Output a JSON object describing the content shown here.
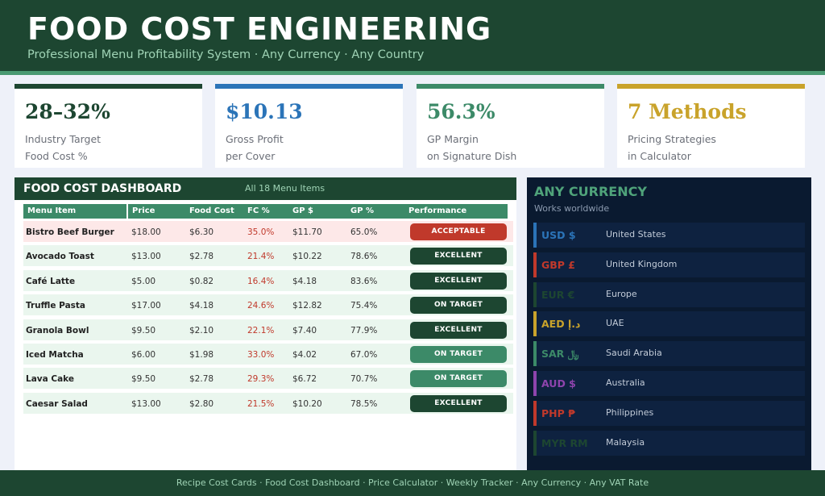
{
  "header": {
    "title": "FOOD COST ENGINEERING",
    "subtitle": "Professional Menu Profitability System  ·  Any Currency  ·  Any Country"
  },
  "cards": [
    {
      "value": "28–32%",
      "line1": "Industry Target",
      "line2": "Food Cost %",
      "color": "#1d4631"
    },
    {
      "value": "$10.13",
      "line1": "Gross Profit",
      "line2": "per Cover",
      "color": "#2b74b8"
    },
    {
      "value": "56.3%",
      "line1": "GP Margin",
      "line2": "on Signature Dish",
      "color": "#3c8a68"
    },
    {
      "value": "7 Methods",
      "line1": "Pricing Strategies",
      "line2": "in Calculator",
      "color": "#c9a32b"
    }
  ],
  "dashboard": {
    "title": "FOOD COST DASHBOARD",
    "count": "All 18 Menu Items",
    "columns": [
      "Menu Item",
      "Price",
      "Food Cost",
      "FC %",
      "GP $",
      "GP %",
      "Performance"
    ],
    "rows": [
      {
        "item": "Bistro Beef Burger",
        "price": "$18.00",
        "food_cost": "$6.30",
        "fc_pct": "35.0%",
        "gp": "$11.70",
        "gp_pct": "65.0%",
        "performance": "ACCEPTABLE"
      },
      {
        "item": "Avocado Toast",
        "price": "$13.00",
        "food_cost": "$2.78",
        "fc_pct": "21.4%",
        "gp": "$10.22",
        "gp_pct": "78.6%",
        "performance": "EXCELLENT"
      },
      {
        "item": "Café Latte",
        "price": "$5.00",
        "food_cost": "$0.82",
        "fc_pct": "16.4%",
        "gp": "$4.18",
        "gp_pct": "83.6%",
        "performance": "EXCELLENT"
      },
      {
        "item": "Truffle Pasta",
        "price": "$17.00",
        "food_cost": "$4.18",
        "fc_pct": "24.6%",
        "gp": "$12.82",
        "gp_pct": "75.4%",
        "performance": "ON TARGET"
      },
      {
        "item": "Granola Bowl",
        "price": "$9.50",
        "food_cost": "$2.10",
        "fc_pct": "22.1%",
        "gp": "$7.40",
        "gp_pct": "77.9%",
        "performance": "EXCELLENT"
      },
      {
        "item": "Iced Matcha",
        "price": "$6.00",
        "food_cost": "$1.98",
        "fc_pct": "33.0%",
        "gp": "$4.02",
        "gp_pct": "67.0%",
        "performance": "ON TARGET"
      },
      {
        "item": "Lava Cake",
        "price": "$9.50",
        "food_cost": "$2.78",
        "fc_pct": "29.3%",
        "gp": "$6.72",
        "gp_pct": "70.7%",
        "performance": "ON TARGET"
      },
      {
        "item": "Caesar Salad",
        "price": "$13.00",
        "food_cost": "$2.80",
        "fc_pct": "21.5%",
        "gp": "$10.20",
        "gp_pct": "78.5%",
        "performance": "EXCELLENT"
      }
    ]
  },
  "currency_panel": {
    "title": "ANY CURRENCY",
    "subtitle": "Works worldwide",
    "items": [
      {
        "code": "USD $",
        "country": "United States",
        "color": "#2b74b8"
      },
      {
        "code": "GBP £",
        "country": "United Kingdom",
        "color": "#c0392b"
      },
      {
        "code": "EUR €",
        "country": "Europe",
        "color": "#1d4631"
      },
      {
        "code": "AED د.إ",
        "country": "UAE",
        "color": "#c9a32b"
      },
      {
        "code": "SAR ﷼",
        "country": "Saudi Arabia",
        "color": "#3c8a68"
      },
      {
        "code": "AUD $",
        "country": "Australia",
        "color": "#8e44ad"
      },
      {
        "code": "PHP ₱",
        "country": "Philippines",
        "color": "#c0392b"
      },
      {
        "code": "MYR RM",
        "country": "Malaysia",
        "color": "#1d4631"
      }
    ]
  },
  "footer": {
    "text": "Recipe Cost Cards  ·  Food Cost Dashboard  ·  Price Calculator  ·  Weekly Tracker  ·  Any Currency  ·  Any VAT Rate"
  },
  "colors": {
    "brand_green": "#1d4631",
    "accent_green": "#3c8a68",
    "acceptable_red": "#c0392b",
    "excellent_dark": "#1d4631",
    "on_target_green": "#3c8a68"
  }
}
